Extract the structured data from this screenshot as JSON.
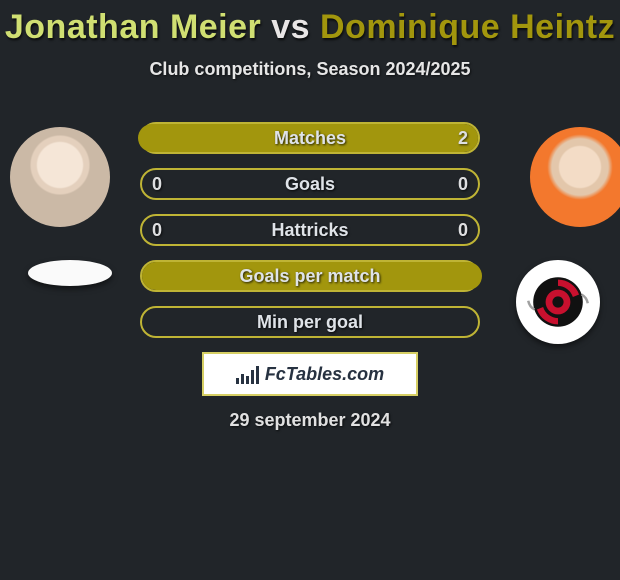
{
  "title": {
    "player1": "Jonathan Meier",
    "vs": "vs",
    "player2": "Dominique Heintz"
  },
  "subtitle": "Club competitions, Season 2024/2025",
  "colors": {
    "background": "#212529",
    "p1_title": "#d0df72",
    "p2_title": "#a2960d",
    "bar_border": "#bfb435",
    "bar_fill": "#a2960d",
    "text": "#dfe3e8"
  },
  "stats": [
    {
      "label": "Matches",
      "left_val": "",
      "right_val": "2",
      "left_pct": 0,
      "right_pct": 100,
      "show_left": false,
      "show_right": true
    },
    {
      "label": "Goals",
      "left_val": "0",
      "right_val": "0",
      "left_pct": 0,
      "right_pct": 0,
      "show_left": true,
      "show_right": true
    },
    {
      "label": "Hattricks",
      "left_val": "0",
      "right_val": "0",
      "left_pct": 0,
      "right_pct": 0,
      "show_left": true,
      "show_right": true
    },
    {
      "label": "Goals per match",
      "left_val": "",
      "right_val": "",
      "left_pct": 100,
      "right_pct": 0,
      "show_left": false,
      "show_right": false
    },
    {
      "label": "Min per goal",
      "left_val": "",
      "right_val": "",
      "left_pct": 0,
      "right_pct": 0,
      "show_left": false,
      "show_right": false
    }
  ],
  "brand": "FcTables.com",
  "date": "29 september 2024"
}
